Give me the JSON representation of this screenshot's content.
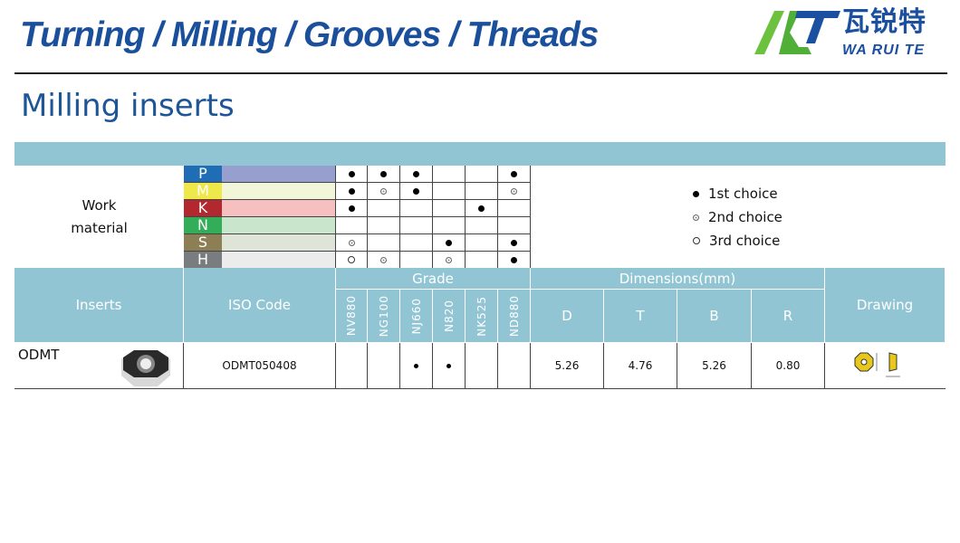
{
  "header": {
    "title": "Turning / Milling / Grooves / Threads",
    "logo": {
      "mark": "WRT",
      "chinese": "瓦锐特",
      "latin": "WA RUI TE",
      "colors": {
        "green": "#5cb83a",
        "blue": "#1b4fa0"
      }
    }
  },
  "subtitle": "Milling inserts",
  "work_material": {
    "label_line1": "Work",
    "label_line2": "material",
    "materials": [
      {
        "letter": "P",
        "letter_color": "#1e6db5",
        "bar_color": "#979fcf"
      },
      {
        "letter": "M",
        "letter_color": "#efe84a",
        "bar_color": "#f1f6d9"
      },
      {
        "letter": "K",
        "letter_color": "#b3272e",
        "bar_color": "#f7c0c0"
      },
      {
        "letter": "N",
        "letter_color": "#33ad57",
        "bar_color": "#c9e6cd"
      },
      {
        "letter": "S",
        "letter_color": "#8c7f55",
        "bar_color": "#dfe4d8"
      },
      {
        "letter": "H",
        "letter_color": "#7a7d80",
        "bar_color": "#ececec"
      }
    ],
    "matrix": [
      [
        1,
        1,
        1,
        0,
        0,
        1
      ],
      [
        1,
        2,
        1,
        0,
        0,
        2
      ],
      [
        1,
        0,
        0,
        0,
        1,
        0
      ],
      [
        0,
        0,
        0,
        0,
        0,
        0
      ],
      [
        2,
        0,
        0,
        1,
        0,
        1
      ],
      [
        3,
        2,
        0,
        2,
        0,
        1
      ]
    ]
  },
  "legend": [
    {
      "symbol": "1",
      "label": "1st choice"
    },
    {
      "symbol": "2",
      "label": "2nd choice"
    },
    {
      "symbol": "3",
      "label": "3rd choice"
    }
  ],
  "table": {
    "headers": {
      "inserts": "Inserts",
      "iso": "ISO Code",
      "grade": "Grade",
      "dimensions": "Dimensions(mm)",
      "drawing": "Drawing"
    },
    "grades": [
      "NV880",
      "NG100",
      "NJ660",
      "N820",
      "NK525",
      "ND880"
    ],
    "dims": [
      "D",
      "T",
      "B",
      "R"
    ],
    "rows": [
      {
        "insert": "ODMT",
        "iso": "ODMT050408",
        "grades": [
          0,
          0,
          1,
          1,
          0,
          0
        ],
        "values": [
          "5.26",
          "4.76",
          "5.26",
          "0.80"
        ]
      }
    ]
  }
}
